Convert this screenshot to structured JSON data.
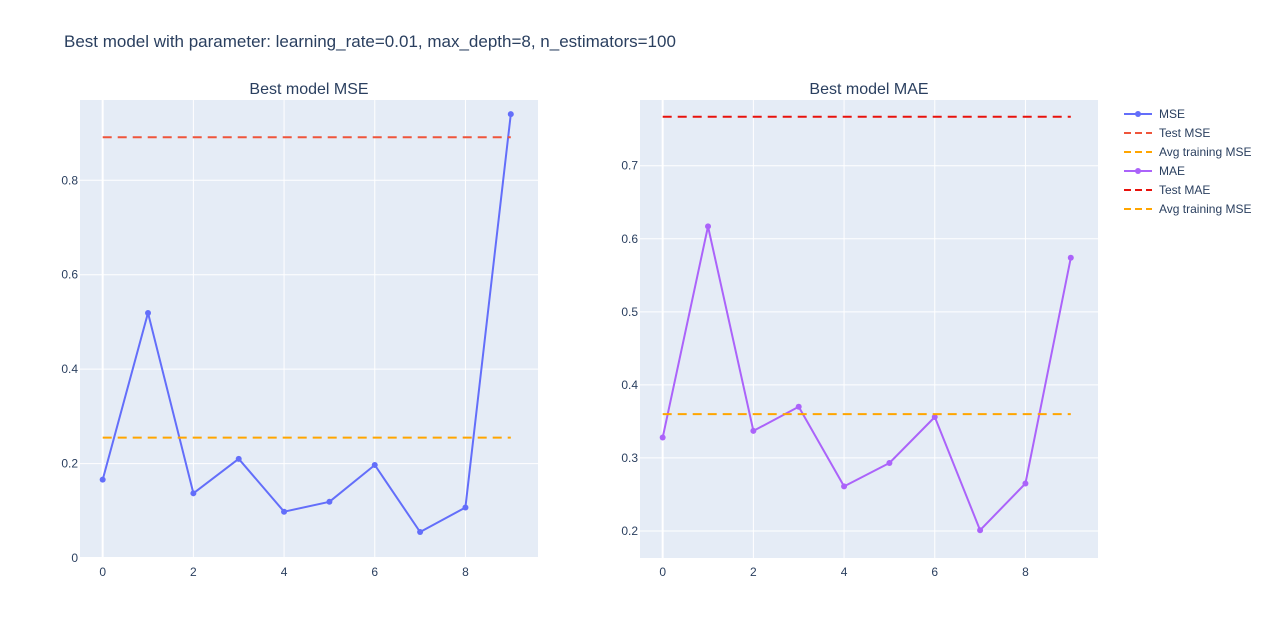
{
  "title": "Best model with parameter: learning_rate=0.01, max_depth=8, n_estimators=100",
  "chart_data": [
    {
      "type": "line",
      "title": "Best model MSE",
      "xlim": [
        -0.5,
        9.6
      ],
      "ylim": [
        0,
        0.97
      ],
      "xticks": [
        0,
        2,
        4,
        6,
        8
      ],
      "yticks": [
        0,
        0.2,
        0.4,
        0.6,
        0.8
      ],
      "ytick_labels": [
        "0",
        "0.2",
        "0.4",
        "0.6",
        "0.8"
      ],
      "grid": true,
      "series": [
        {
          "name": "MSE",
          "kind": "line+markers",
          "color": "#636efa",
          "x": [
            0,
            1,
            2,
            3,
            4,
            5,
            6,
            7,
            8,
            9
          ],
          "y": [
            0.166,
            0.519,
            0.137,
            0.21,
            0.098,
            0.119,
            0.197,
            0.055,
            0.107,
            0.94
          ]
        },
        {
          "name": "Test MSE",
          "kind": "dash",
          "color": "#ef553b",
          "x": [
            0,
            9
          ],
          "y": [
            0.891,
            0.891
          ]
        },
        {
          "name": "Avg training MSE",
          "kind": "dash",
          "color": "#ffa500",
          "x": [
            0,
            9
          ],
          "y": [
            0.255,
            0.255
          ]
        }
      ]
    },
    {
      "type": "line",
      "title": "Best model MAE",
      "xlim": [
        -0.5,
        9.6
      ],
      "ylim": [
        0.163,
        0.79
      ],
      "xticks": [
        0,
        2,
        4,
        6,
        8
      ],
      "yticks": [
        0.2,
        0.3,
        0.4,
        0.5,
        0.6,
        0.7
      ],
      "ytick_labels": [
        "0.2",
        "0.3",
        "0.4",
        "0.5",
        "0.6",
        "0.7"
      ],
      "grid": true,
      "series": [
        {
          "name": "MAE",
          "kind": "line+markers",
          "color": "#ab63fa",
          "x": [
            0,
            1,
            2,
            3,
            4,
            5,
            6,
            7,
            8,
            9
          ],
          "y": [
            0.328,
            0.617,
            0.337,
            0.37,
            0.261,
            0.293,
            0.356,
            0.201,
            0.265,
            0.574
          ]
        },
        {
          "name": "Test MAE",
          "kind": "dash",
          "color": "#e8120c",
          "x": [
            0,
            9
          ],
          "y": [
            0.767,
            0.767
          ]
        },
        {
          "name": "Avg training MSE",
          "kind": "dash",
          "color": "#ffa500",
          "x": [
            0,
            9
          ],
          "y": [
            0.36,
            0.36
          ]
        }
      ]
    }
  ],
  "legend": {
    "position": "top-right",
    "items": [
      {
        "label": "MSE",
        "color": "#636efa",
        "kind": "line+markers"
      },
      {
        "label": "Test MSE",
        "color": "#ef553b",
        "kind": "dash"
      },
      {
        "label": "Avg training MSE",
        "color": "#ffa500",
        "kind": "dash"
      },
      {
        "label": "MAE",
        "color": "#ab63fa",
        "kind": "line+markers"
      },
      {
        "label": "Test MAE",
        "color": "#e8120c",
        "kind": "dash"
      },
      {
        "label": "Avg training MSE",
        "color": "#ffa500",
        "kind": "dash"
      }
    ]
  }
}
